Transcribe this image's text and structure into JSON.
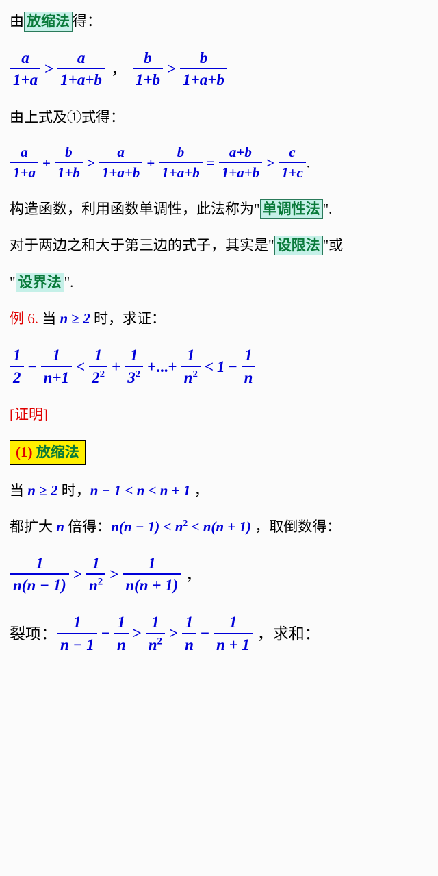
{
  "colors": {
    "blue": "#0000d9",
    "red": "#e00000",
    "green": "#0a7a3a",
    "hl_bg": "#c5f0e8",
    "hl_border": "#2a7a5a",
    "yellow": "#ffef00",
    "body_bg": "#fbfbfb"
  },
  "typography": {
    "body_size": 21,
    "math_size": 23,
    "body_family": "SimSun",
    "math_family": "Times New Roman",
    "math_style": "italic",
    "math_weight": "bold"
  },
  "t1a": "由",
  "t1b": "放缩法",
  "t1c": "得：",
  "eq1": {
    "f1n": "a",
    "f1d": "1+a",
    "op1": ">",
    "f2n": "a",
    "f2d": "1+a+b",
    "sep": "，",
    "f3n": "b",
    "f3d": "1+b",
    "op2": ">",
    "f4n": "b",
    "f4d": "1+a+b"
  },
  "t2": "由上式及①式得：",
  "eq2": {
    "f1n": "a",
    "f1d": "1+a",
    "op1": "+",
    "f2n": "b",
    "f2d": "1+b",
    "op2": ">",
    "f3n": "a",
    "f3d": "1+a+b",
    "op3": "+",
    "f4n": "b",
    "f4d": "1+a+b",
    "op4": "=",
    "f5n": "a+b",
    "f5d": "1+a+b",
    "op5": ">",
    "f6n": "c",
    "f6d": "1+c",
    "tail": "."
  },
  "t3a": "构造函数，利用函数单调性，此法称为\"",
  "t3b": "单调性法",
  "t3c": "\".",
  "t4a": "对于两边之和大于第三边的式子，其实是\"",
  "t4b": "设限法",
  "t4c": "\"或",
  "t5a": "\"",
  "t5b": "设界法",
  "t5c": "\".",
  "ex_label": "例 6.",
  "ex_a": "  当 ",
  "ex_cond": "n ≥ 2",
  "ex_b": " 时，求证：",
  "eq3": {
    "f1n": "1",
    "f1d": "2",
    "op1": "−",
    "f2n": "1",
    "f2d": "n+1",
    "op2": "<",
    "f3n": "1",
    "f3d_base": "2",
    "f3d_exp": "2",
    "op3": "+",
    "f4n": "1",
    "f4d_base": "3",
    "f4d_exp": "2",
    "op4": "+...+",
    "f5n": "1",
    "f5d_base": "n",
    "f5d_exp": "2",
    "op5": "<",
    "rhs_a": "1",
    "op6": "−",
    "f6n": "1",
    "f6d": "n"
  },
  "proof_label": "[证明]",
  "method_num": "(1)",
  "method_name": "  放缩法",
  "t6a": "当 ",
  "t6cond": "n ≥ 2",
  "t6b": " 时，",
  "t6ineq": "n − 1 < n < n + 1",
  "t6c": "  ，",
  "t7a": "都扩大 ",
  "t7n": "n",
  "t7b": " 倍得：",
  "t7ineq": "n(n − 1) < n",
  "t7exp": "2",
  "t7ineq2": " < n(n + 1)",
  "t7c": "  ，取倒数得：",
  "eq4": {
    "f1n": "1",
    "f1d": "n(n − 1)",
    "op1": ">",
    "f2n": "1",
    "f2d_base": "n",
    "f2d_exp": "2",
    "op2": ">",
    "f3n": "1",
    "f3d": "n(n + 1)",
    "tail": "  ，"
  },
  "t8a": "裂项：",
  "eq5": {
    "f1n": "1",
    "f1d": "n − 1",
    "op1": "−",
    "f2n": "1",
    "f2d": "n",
    "op2": ">",
    "f3n": "1",
    "f3d_base": "n",
    "f3d_exp": "2",
    "op3": ">",
    "f4n": "1",
    "f4d": "n",
    "op4": "−",
    "f5n": "1",
    "f5d": "n + 1"
  },
  "t8b": "  ，求和："
}
